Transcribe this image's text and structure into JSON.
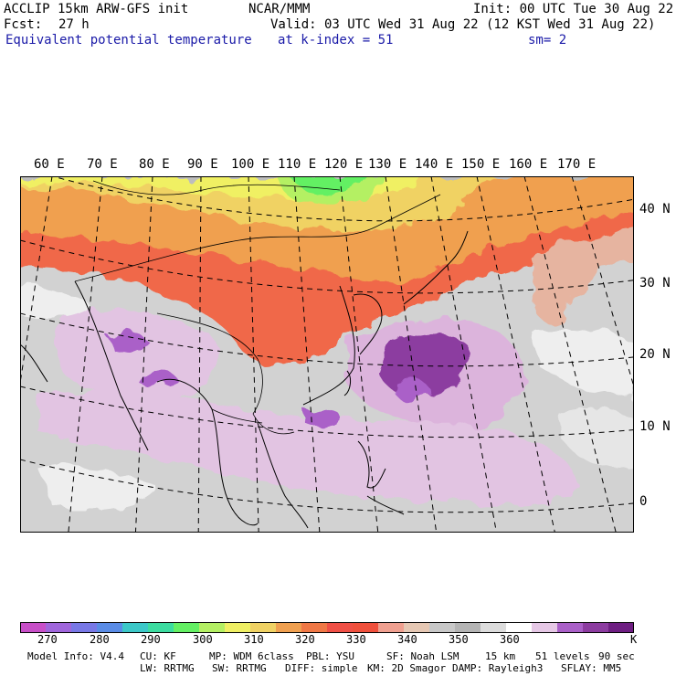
{
  "header": {
    "model_line": "ACCLIP 15km ARW-GFS init",
    "org": "NCAR/MMM",
    "init": "Init: 00 UTC Tue 30 Aug 22",
    "fcst_label": "Fcst:",
    "fcst_value": "27 h",
    "valid": "Valid: 03 UTC Wed 31 Aug 22 (12 KST Wed 31 Aug 22)",
    "field_name": "Equivalent potential temperature",
    "level": "at k-index =  51",
    "smoothing": "sm= 2"
  },
  "map": {
    "lon_labels": [
      "60 E",
      "70 E",
      "80 E",
      "90 E",
      "100 E",
      "110 E",
      "120 E",
      "130 E",
      "140 E",
      "150 E",
      "160 E",
      "170 E"
    ],
    "lat_labels": [
      "40 N",
      "30 N",
      "20 N",
      "10 N",
      "0"
    ]
  },
  "colorbar": {
    "colors": [
      "#c84fc8",
      "#a066dc",
      "#7878e6",
      "#5a8ce6",
      "#3cc8c8",
      "#3cdca0",
      "#64f064",
      "#b4f064",
      "#f0f064",
      "#f0d264",
      "#f0a050",
      "#f07846",
      "#f05046",
      "#f0503c",
      "#f0a090",
      "#e6c8b4",
      "#c8c8c8",
      "#b4b4b4",
      "#dcdcdc",
      "#ffffff",
      "#e6c8e6",
      "#aa60c8",
      "#8c3ca0",
      "#6e1e82"
    ],
    "tick_labels": [
      "270",
      "280",
      "290",
      "300",
      "310",
      "320",
      "330",
      "340",
      "350",
      "360"
    ],
    "unit": "K"
  },
  "footer": {
    "line1": [
      "Model Info: V4.4",
      "CU: KF",
      "MP: WDM 6class",
      "PBL: YSU",
      "SF: Noah LSM",
      "15 km",
      "51 levels",
      "90 sec"
    ],
    "line2": [
      "LW: RRTMG",
      "SW: RRTMG",
      "DIFF: simple",
      "KM: 2D Smagor",
      "DAMP: Rayleigh3",
      "SFLAY: MM5"
    ]
  }
}
